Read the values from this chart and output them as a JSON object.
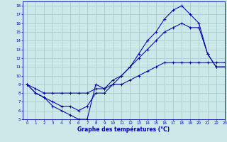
{
  "title": "Graphe des températures (°C)",
  "bg_color": "#cce8e8",
  "grid_color": "#aacccc",
  "line_color": "#0000aa",
  "xlim": [
    -0.5,
    23
  ],
  "ylim": [
    5,
    18.5
  ],
  "xticks": [
    0,
    1,
    2,
    3,
    4,
    5,
    6,
    7,
    8,
    9,
    10,
    11,
    12,
    13,
    14,
    15,
    16,
    17,
    18,
    19,
    20,
    21,
    22,
    23
  ],
  "yticks": [
    5,
    6,
    7,
    8,
    9,
    10,
    11,
    12,
    13,
    14,
    15,
    16,
    17,
    18
  ],
  "line1_x": [
    0,
    1,
    2,
    3,
    4,
    5,
    6,
    7,
    8,
    9,
    10,
    11,
    12,
    13,
    14,
    15,
    16,
    17,
    18,
    19,
    20,
    21,
    22,
    23
  ],
  "line1_y": [
    9,
    8,
    7.5,
    6.5,
    6,
    5.5,
    5,
    5,
    9,
    8.5,
    9.5,
    10,
    11,
    12.5,
    14,
    15,
    16.5,
    17.5,
    18,
    17,
    16,
    12.5,
    11,
    11
  ],
  "line2_x": [
    0,
    1,
    2,
    3,
    4,
    5,
    6,
    7,
    8,
    9,
    10,
    11,
    12,
    13,
    14,
    15,
    16,
    17,
    18,
    19,
    20,
    21,
    22,
    23
  ],
  "line2_y": [
    9,
    8.5,
    8,
    8,
    8,
    8,
    8,
    8,
    8.5,
    8.5,
    9,
    9,
    9.5,
    10,
    10.5,
    11,
    11.5,
    11.5,
    11.5,
    11.5,
    11.5,
    11.5,
    11.5,
    11.5
  ],
  "line3_x": [
    0,
    1,
    2,
    3,
    4,
    5,
    6,
    7,
    8,
    9,
    10,
    11,
    12,
    13,
    14,
    15,
    16,
    17,
    18,
    19,
    20,
    21,
    22,
    23
  ],
  "line3_y": [
    9,
    8,
    7.5,
    7,
    6.5,
    6.5,
    6,
    6.5,
    8,
    8,
    9,
    10,
    11,
    12,
    13,
    14,
    15,
    15.5,
    16,
    15.5,
    15.5,
    12.5,
    11,
    11
  ]
}
